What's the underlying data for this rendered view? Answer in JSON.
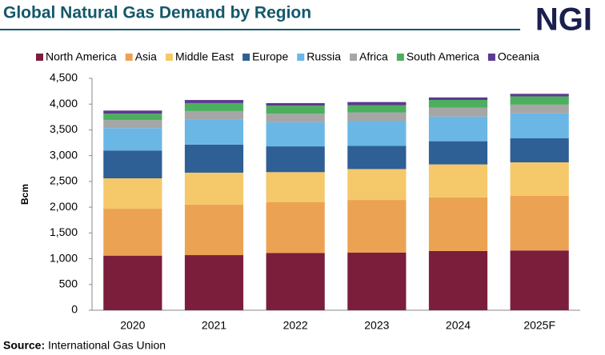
{
  "chart_data": {
    "type": "stacked_bar",
    "title": "Global Natural Gas Demand by Region",
    "logo": "NGI",
    "ylabel": "Bcm",
    "categories": [
      "2020",
      "2021",
      "2022",
      "2023",
      "2024",
      "2025F"
    ],
    "series": [
      {
        "name": "North America",
        "color": "#7b1e3c",
        "values": [
          1060,
          1070,
          1110,
          1120,
          1150,
          1160
        ]
      },
      {
        "name": "Asia",
        "color": "#eba353",
        "values": [
          910,
          980,
          990,
          1020,
          1040,
          1060
        ]
      },
      {
        "name": "Middle East",
        "color": "#f5c86a",
        "values": [
          590,
          620,
          580,
          600,
          640,
          650
        ]
      },
      {
        "name": "Europe",
        "color": "#2e5f95",
        "values": [
          540,
          545,
          500,
          450,
          450,
          470
        ]
      },
      {
        "name": "Russia",
        "color": "#6ab7e6",
        "values": [
          435,
          480,
          465,
          480,
          480,
          480
        ]
      },
      {
        "name": "Africa",
        "color": "#a6a6a6",
        "values": [
          155,
          170,
          170,
          170,
          170,
          170
        ]
      },
      {
        "name": "South America",
        "color": "#4caf5e",
        "values": [
          125,
          155,
          155,
          140,
          150,
          160
        ]
      },
      {
        "name": "Oceania",
        "color": "#5b3a8f",
        "values": [
          60,
          60,
          50,
          60,
          50,
          50
        ]
      }
    ],
    "ylim": [
      0,
      4500
    ],
    "yticks": [
      0,
      500,
      {
        "value": 1000,
        "label": "1,000"
      },
      {
        "value": 1500,
        "label": "1,500"
      },
      {
        "value": 2000,
        "label": "2,000"
      },
      {
        "value": 2500,
        "label": "2,500"
      },
      {
        "value": 3000,
        "label": "3,000"
      },
      {
        "value": 3500,
        "label": "3,500"
      },
      {
        "value": 4000,
        "label": "4,000"
      },
      {
        "value": 4500,
        "label": "4,500"
      }
    ],
    "legend_position": "top",
    "source_label": "Source:",
    "source": "International Gas Union"
  }
}
